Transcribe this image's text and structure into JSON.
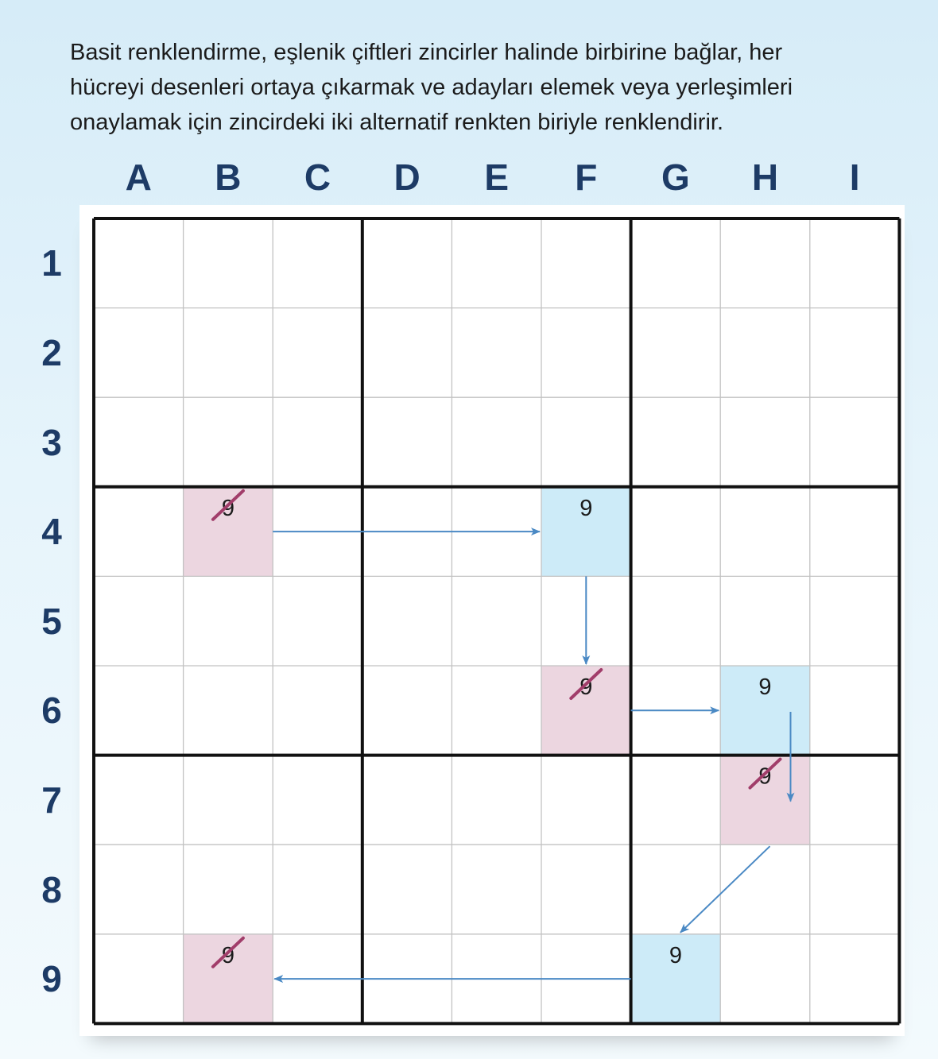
{
  "description_lines": [
    "Basit renklendirme, eşlenik çiftleri zincirler halinde birbirine bağlar, her",
    "hücreyi desenleri ortaya çıkarmak ve adayları elemek veya yerleşimleri",
    " onaylamak için zincirdeki iki alternatif renkten biriyle renklendirir."
  ],
  "columns": [
    "A",
    "B",
    "C",
    "D",
    "E",
    "F",
    "G",
    "H",
    "I"
  ],
  "rows": [
    "1",
    "2",
    "3",
    "4",
    "5",
    "6",
    "7",
    "8",
    "9"
  ],
  "colors": {
    "label": "#1d3b66",
    "pink_cell": "#ecd6e0",
    "blue_cell": "#cdebf8",
    "arrow": "#4a89c4",
    "strike": "#a13d6a",
    "thin_line": "#c2c2c2",
    "thick_line": "#111111"
  },
  "cells": [
    {
      "col": "B",
      "row": "4",
      "digit": "9",
      "color": "pink",
      "struck": true
    },
    {
      "col": "F",
      "row": "4",
      "digit": "9",
      "color": "blue",
      "struck": false
    },
    {
      "col": "F",
      "row": "6",
      "digit": "9",
      "color": "pink",
      "struck": true
    },
    {
      "col": "H",
      "row": "6",
      "digit": "9",
      "color": "blue",
      "struck": false
    },
    {
      "col": "H",
      "row": "7",
      "digit": "9",
      "color": "pink",
      "struck": true
    },
    {
      "col": "G",
      "row": "9",
      "digit": "9",
      "color": "blue",
      "struck": false
    },
    {
      "col": "B",
      "row": "9",
      "digit": "9",
      "color": "pink",
      "struck": true
    }
  ],
  "chain": [
    {
      "from": "B4",
      "to": "F4"
    },
    {
      "from": "F4",
      "to": "F6"
    },
    {
      "from": "F6",
      "to": "H6"
    },
    {
      "from": "H6",
      "to": "H7"
    },
    {
      "from": "H7",
      "to": "G9"
    },
    {
      "from": "G9",
      "to": "B9"
    }
  ]
}
